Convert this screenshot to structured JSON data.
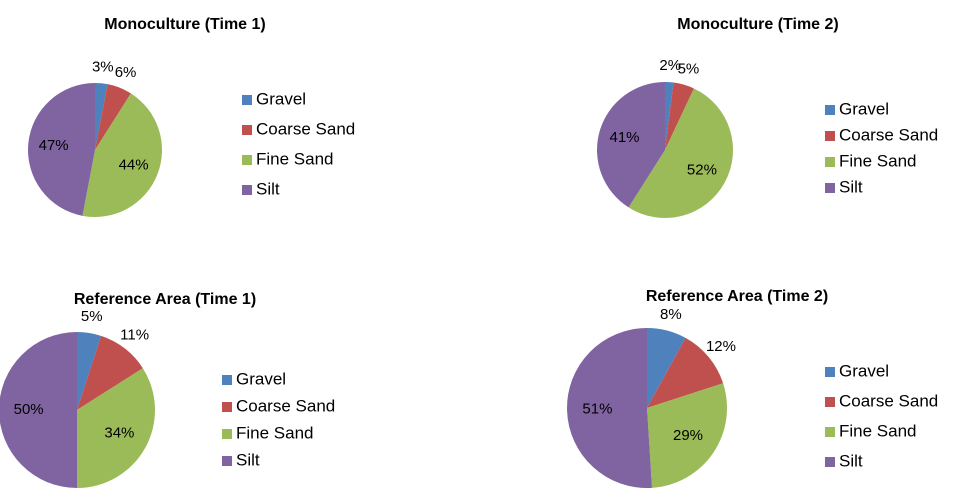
{
  "chart_data": [
    {
      "type": "pie",
      "title": "Monoculture (Time 1)",
      "categories": [
        "Gravel",
        "Coarse Sand",
        "Fine Sand",
        "Silt"
      ],
      "values": [
        3,
        6,
        44,
        47
      ],
      "value_labels": [
        "3%",
        "6%",
        "44%",
        "47%"
      ],
      "colors": [
        "#4f81bd",
        "#c0504d",
        "#9bbb59",
        "#8064a2"
      ]
    },
    {
      "type": "pie",
      "title": "Monoculture (Time 2)",
      "categories": [
        "Gravel",
        "Coarse Sand",
        "Fine Sand",
        "Silt"
      ],
      "values": [
        2,
        5,
        52,
        41
      ],
      "value_labels": [
        "2%",
        "5%",
        "52%",
        "41%"
      ],
      "colors": [
        "#4f81bd",
        "#c0504d",
        "#9bbb59",
        "#8064a2"
      ]
    },
    {
      "type": "pie",
      "title": "Reference Area (Time 1)",
      "categories": [
        "Gravel",
        "Coarse Sand",
        "Fine Sand",
        "Silt"
      ],
      "values": [
        5,
        11,
        34,
        50
      ],
      "value_labels": [
        "5%",
        "11%",
        "34%",
        "50%"
      ],
      "colors": [
        "#4f81bd",
        "#c0504d",
        "#9bbb59",
        "#8064a2"
      ]
    },
    {
      "type": "pie",
      "title": "Reference Area (Time 2)",
      "categories": [
        "Gravel",
        "Coarse Sand",
        "Fine Sand",
        "Silt"
      ],
      "values": [
        8,
        12,
        29,
        51
      ],
      "value_labels": [
        "8%",
        "12%",
        "29%",
        "51%"
      ],
      "colors": [
        "#4f81bd",
        "#c0504d",
        "#9bbb59",
        "#8064a2"
      ]
    }
  ]
}
